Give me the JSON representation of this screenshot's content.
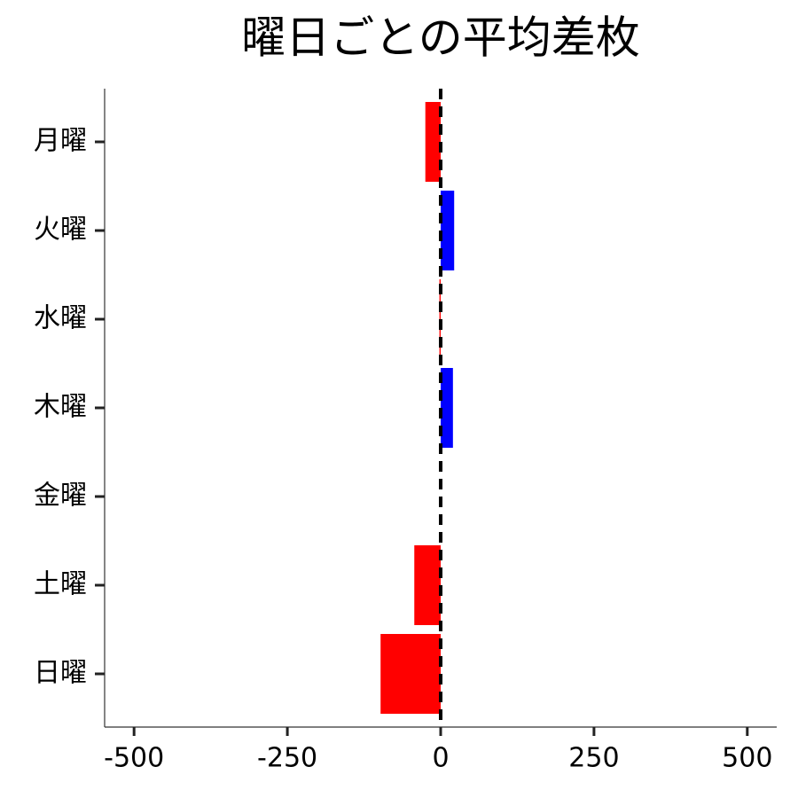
{
  "chart_data": {
    "type": "barh",
    "title": "曜日ごとの平均差枚",
    "categories": [
      "月曜",
      "火曜",
      "水曜",
      "木曜",
      "金曜",
      "土曜",
      "日曜"
    ],
    "values": [
      -25,
      22,
      -2,
      20,
      0,
      -43,
      -98
    ],
    "positive_color": "#0000ff",
    "negative_color": "#ff0000",
    "xlim": [
      -548,
      548
    ],
    "xticks": [
      -500,
      -250,
      0,
      250,
      500
    ],
    "reference_line": 0
  }
}
